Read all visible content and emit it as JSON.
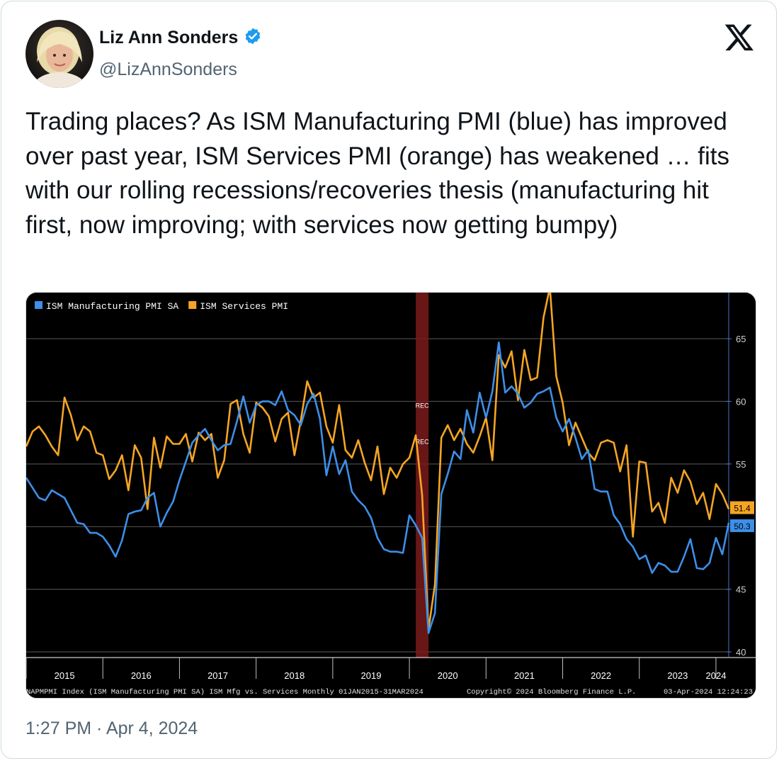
{
  "tweet": {
    "author_name": "Liz Ann Sonders",
    "author_handle": "@LizAnnSonders",
    "text": "Trading places? As ISM Manufacturing PMI (blue) has improved over past year, ISM Services PMI (orange) has weakened … fits with our rolling recessions/recoveries thesis (manufacturing hit first, now improving; with services now getting bumpy)",
    "timestamp": "1:27 PM · Apr 4, 2024",
    "verified_icon": "verified-badge-icon",
    "platform_icon": "x-logo-icon"
  },
  "colors": {
    "manufacturing": "#3d8fe8",
    "services": "#f5a524",
    "recession": "#7a1a1a",
    "verified": "#1d9bf0"
  },
  "chart_data": {
    "type": "line",
    "title": "",
    "xlabel": "",
    "ylabel": "",
    "ylim": [
      40,
      68
    ],
    "y_ticks": [
      40,
      45,
      50,
      55,
      60,
      65
    ],
    "x_ticks": [
      "2015",
      "2016",
      "2017",
      "2018",
      "2019",
      "2020",
      "2021",
      "2022",
      "2023",
      "2024"
    ],
    "x_range": [
      "2015-01",
      "2024-03"
    ],
    "grid": true,
    "legend_position": "top-left",
    "recession_band": {
      "start": "2020-02",
      "end": "2020-04",
      "label": "REC"
    },
    "footer_left": "NAPMPMI Index (ISM Manufacturing PMI SA) ISM Mfg vs. Services  Monthly 01JAN2015-31MAR2024",
    "footer_center": "Copyright© 2024 Bloomberg Finance L.P.",
    "footer_right": "03-Apr-2024 12:24:23",
    "series": [
      {
        "name": "ISM Manufacturing PMI SA",
        "last_label": "50.3",
        "values": [
          53.9,
          53.1,
          52.3,
          52.1,
          52.9,
          52.6,
          52.3,
          51.3,
          50.3,
          50.2,
          49.5,
          49.5,
          49.2,
          48.5,
          47.6,
          48.9,
          51.0,
          51.2,
          51.3,
          52.3,
          52.7,
          50.0,
          51.1,
          52.0,
          53.7,
          55.2,
          56.7,
          57.3,
          57.8,
          56.9,
          56.1,
          56.5,
          56.6,
          58.4,
          60.4,
          58.3,
          59.7,
          60.0,
          60.0,
          59.7,
          60.8,
          59.3,
          58.9,
          58.1,
          59.8,
          60.6,
          58.6,
          54.1,
          56.4,
          54.2,
          55.3,
          52.8,
          52.1,
          51.6,
          50.7,
          49.1,
          48.2,
          48.0,
          48.0,
          47.9,
          50.9,
          50.1,
          49.1,
          41.5,
          43.1,
          52.6,
          54.2,
          56.0,
          55.4,
          59.3,
          57.5,
          60.7,
          58.7,
          60.8,
          64.7,
          60.7,
          61.2,
          60.6,
          59.5,
          59.9,
          60.6,
          60.8,
          61.1,
          58.7,
          57.6,
          58.6,
          57.1,
          55.4,
          56.1,
          53.0,
          52.8,
          52.8,
          50.9,
          50.2,
          49.0,
          48.4,
          47.4,
          47.7,
          46.3,
          47.1,
          46.9,
          46.4,
          46.4,
          47.6,
          49.0,
          46.7,
          46.6,
          47.1,
          49.1,
          47.8,
          50.3
        ]
      },
      {
        "name": "ISM Services PMI",
        "last_label": "51.4",
        "values": [
          56.4,
          57.6,
          58.0,
          57.3,
          56.4,
          55.7,
          60.3,
          58.9,
          56.9,
          58.0,
          57.6,
          55.9,
          55.7,
          53.8,
          54.5,
          55.7,
          52.9,
          56.5,
          55.5,
          51.4,
          57.1,
          54.7,
          57.2,
          56.6,
          56.6,
          57.4,
          55.2,
          57.5,
          56.9,
          57.4,
          53.9,
          55.3,
          59.8,
          60.1,
          57.4,
          55.9,
          59.9,
          59.5,
          58.8,
          56.8,
          58.6,
          59.1,
          55.7,
          58.5,
          61.6,
          60.3,
          60.7,
          58.0,
          56.7,
          59.7,
          56.1,
          55.5,
          56.9,
          55.1,
          53.7,
          56.4,
          52.6,
          54.7,
          53.9,
          55.0,
          55.5,
          57.3,
          52.5,
          41.8,
          45.4,
          57.1,
          58.1,
          56.9,
          57.8,
          56.6,
          55.9,
          57.2,
          58.7,
          55.3,
          63.7,
          62.7,
          64.0,
          60.1,
          64.1,
          61.7,
          61.9,
          66.7,
          69.1,
          62.0,
          59.9,
          56.5,
          58.3,
          57.1,
          55.9,
          55.3,
          56.7,
          56.9,
          56.7,
          54.4,
          56.5,
          49.2,
          55.2,
          55.1,
          51.2,
          51.9,
          50.3,
          53.9,
          52.7,
          54.5,
          53.6,
          51.8,
          52.7,
          50.6,
          53.4,
          52.6,
          51.4
        ]
      }
    ]
  }
}
